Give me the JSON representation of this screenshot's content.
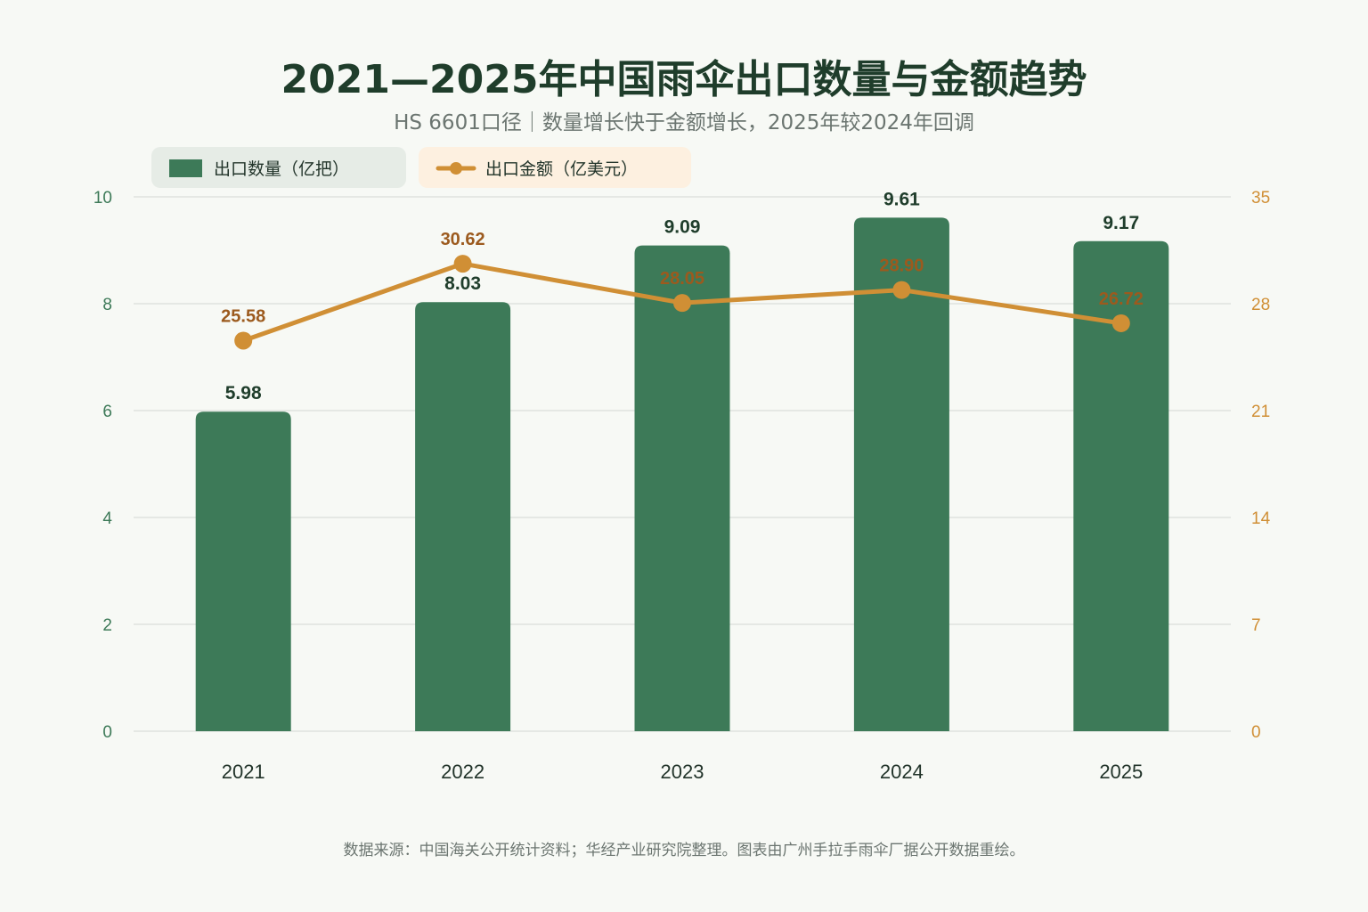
{
  "title": "2021—2025年中国雨伞出口数量与金额趋势",
  "subtitle": "HS 6601口径｜数量增长快于金额增长，2025年较2024年回调",
  "footnote": "数据来源：中国海关公开统计资料；华经产业研究院整理。图表由广州手拉手雨伞厂据公开数据重绘。",
  "colors": {
    "bar": "#3d7a58",
    "line": "#d08f35",
    "line_label": "#9c5a1e",
    "grid": "#dfe3de",
    "background": "#f7f9f5",
    "legend_bar_bg": "#e6ece6",
    "legend_line_bg": "#fdf0e0"
  },
  "legend": {
    "bar_label": "出口数量（亿把）",
    "line_label": "出口金额（亿美元）"
  },
  "chart_data": {
    "type": "bar",
    "categories": [
      "2021",
      "2022",
      "2023",
      "2024",
      "2025"
    ],
    "series": [
      {
        "name": "出口数量（亿把）",
        "type": "bar",
        "axis": "left",
        "values": [
          5.98,
          8.03,
          9.09,
          9.61,
          9.17
        ]
      },
      {
        "name": "出口金额（亿美元）",
        "type": "line",
        "axis": "right",
        "values": [
          25.58,
          30.62,
          28.05,
          28.9,
          26.72
        ]
      }
    ],
    "y_left": {
      "range": [
        0,
        10
      ],
      "ticks": [
        "0",
        "2",
        "4",
        "6",
        "8",
        "10"
      ]
    },
    "y_right": {
      "range": [
        0,
        35
      ],
      "ticks": [
        "0",
        "7",
        "14",
        "21",
        "28",
        "35"
      ]
    },
    "grid": true,
    "legend_position": "top-left"
  }
}
